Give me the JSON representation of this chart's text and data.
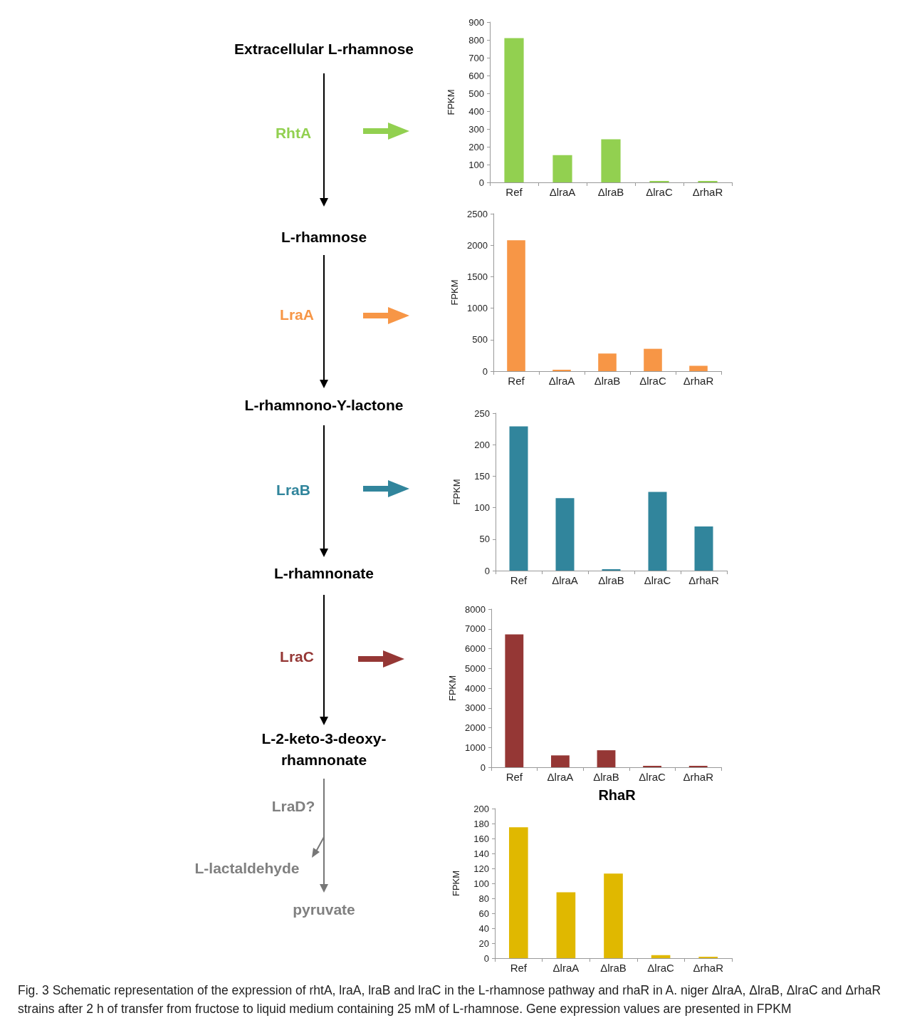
{
  "chart_data": [
    {
      "type": "other",
      "annotations": [
        "Extracellular L-rhamnose",
        "L-rhamnose",
        "L-rhamnono-Y-lactone",
        "L-rhamnonate",
        "L-2-keto-3-deoxy-\nrhamnonate",
        "LraD?",
        "L-lactaldehyde",
        "pyruvate",
        "Fig. 3 Schematic representation of the expression of rhtA, lraA, lraB and lraC in the L-rhamnose pathway and rhaR in A. niger ΔlraA, ΔlraB, ΔlraC and ΔrhaR strains after 2 h of transfer from fructose to liquid medium containing 25 mM of L-rhamnose. Gene expression values are presented in FPKM"
      ]
    },
    {
      "type": "bar",
      "annotations": [
        "RhtA"
      ],
      "categories": [
        "Ref",
        "ΔlraA",
        "ΔlraB",
        "ΔlraC",
        "ΔrhaR"
      ],
      "values": [
        810,
        153,
        242,
        0,
        0
      ],
      "color": "#92d050",
      "ylabel": "FPKM",
      "ylim": [
        0,
        900
      ],
      "yticks": [
        0,
        100,
        200,
        300,
        400,
        500,
        600,
        700,
        800,
        900
      ]
    },
    {
      "type": "bar",
      "annotations": [
        "LraA"
      ],
      "categories": [
        "Ref",
        "ΔlraA",
        "ΔlraB",
        "ΔlraC",
        "ΔrhaR"
      ],
      "values": [
        2080,
        0,
        280,
        355,
        85
      ],
      "color": "#f79646",
      "ylabel": "FPKM",
      "ylim": [
        0,
        2500
      ],
      "yticks": [
        0,
        500,
        1000,
        1500,
        2000,
        2500
      ]
    },
    {
      "type": "bar",
      "annotations": [
        "LraB"
      ],
      "categories": [
        "Ref",
        "ΔlraA",
        "ΔlraB",
        "ΔlraC",
        "ΔrhaR"
      ],
      "values": [
        229,
        115,
        2,
        125,
        70
      ],
      "color": "#31859c",
      "ylabel": "FPKM",
      "ylim": [
        0,
        250
      ],
      "yticks": [
        0,
        50,
        100,
        150,
        200,
        250
      ]
    },
    {
      "type": "bar",
      "annotations": [
        "LraC"
      ],
      "categories": [
        "Ref",
        "ΔlraA",
        "ΔlraB",
        "ΔlraC",
        "ΔrhaR"
      ],
      "values": [
        6720,
        600,
        860,
        0,
        50
      ],
      "color": "#953735",
      "ylabel": "FPKM",
      "ylim": [
        0,
        8000
      ],
      "yticks": [
        0,
        1000,
        2000,
        3000,
        4000,
        5000,
        6000,
        7000,
        8000
      ]
    },
    {
      "type": "bar",
      "title": "RhaR",
      "categories": [
        "Ref",
        "ΔlraA",
        "ΔlraB",
        "ΔlraC",
        "ΔrhaR"
      ],
      "values": [
        175,
        88,
        113,
        4,
        1
      ],
      "color": "#e0b800",
      "ylabel": "FPKM",
      "ylim": [
        0,
        200
      ],
      "yticks": [
        0,
        20,
        40,
        60,
        80,
        100,
        120,
        140,
        160,
        180,
        200
      ]
    }
  ]
}
